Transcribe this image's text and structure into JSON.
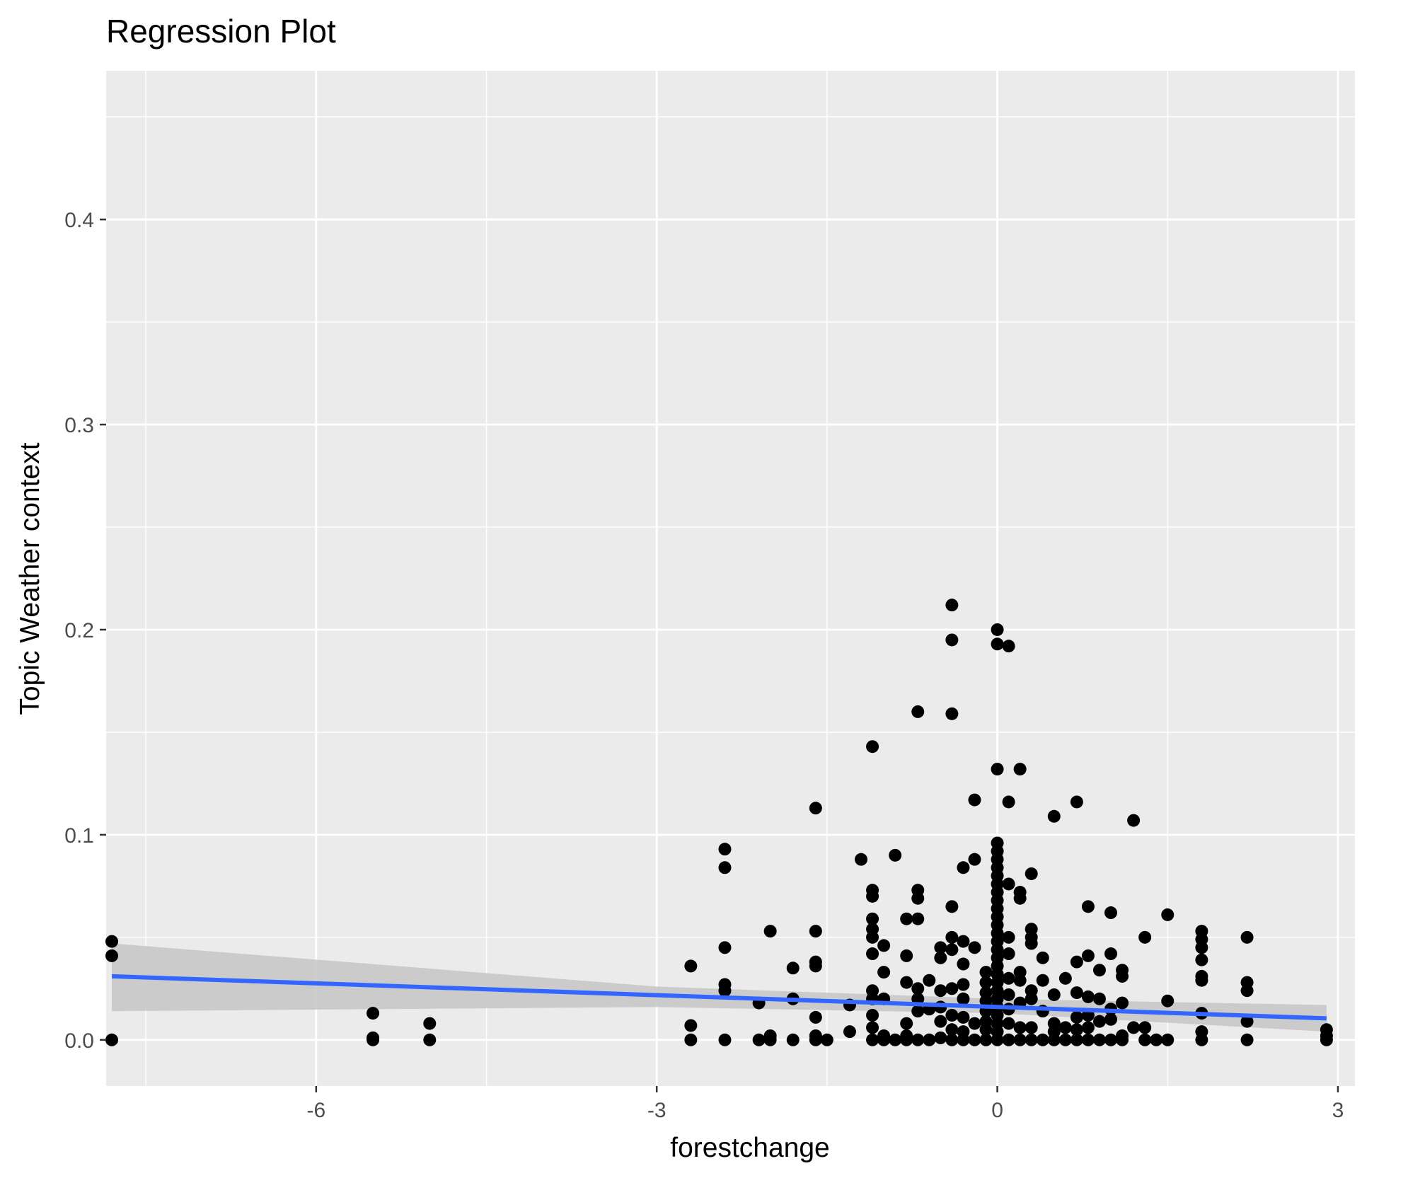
{
  "chart_data": {
    "type": "scatter",
    "title": "Regression Plot",
    "xlabel": "forestchange",
    "ylabel": "Topic Weather context",
    "xlim": [
      -7.85,
      3.15
    ],
    "ylim": [
      -0.0225,
      0.4725
    ],
    "x_ticks": [
      -6,
      -3,
      0,
      3
    ],
    "x_tick_labels": [
      "-6",
      "-3",
      "0",
      "3"
    ],
    "y_ticks": [
      0.0,
      0.1,
      0.2,
      0.3,
      0.4
    ],
    "y_tick_labels": [
      "0.0",
      "0.1",
      "0.2",
      "0.3",
      "0.4"
    ],
    "grid": true,
    "background": "#EBEBEB",
    "point_color": "#000000",
    "regression": {
      "color": "#3366FF",
      "band_color": "#C8C8C8",
      "x_start": -7.8,
      "x_end": 2.9,
      "y_start": 0.031,
      "y_end": 0.0105,
      "ci": [
        {
          "x": -7.8,
          "lo": 0.014,
          "hi": 0.047
        },
        {
          "x": -3.0,
          "lo": 0.016,
          "hi": 0.026
        },
        {
          "x": 0.0,
          "lo": 0.013,
          "hi": 0.02
        },
        {
          "x": 2.9,
          "lo": 0.004,
          "hi": 0.017
        }
      ]
    },
    "points": [
      {
        "x": -7.8,
        "y": 0.048
      },
      {
        "x": -7.8,
        "y": 0.041
      },
      {
        "x": -7.8,
        "y": 0.0
      },
      {
        "x": -5.5,
        "y": 0.013
      },
      {
        "x": -5.5,
        "y": 0.001
      },
      {
        "x": -5.5,
        "y": 0.0
      },
      {
        "x": -5.0,
        "y": 0.008
      },
      {
        "x": -5.0,
        "y": 0.0
      },
      {
        "x": -2.7,
        "y": 0.036
      },
      {
        "x": -2.7,
        "y": 0.007
      },
      {
        "x": -2.7,
        "y": 0.0
      },
      {
        "x": -2.4,
        "y": 0.093
      },
      {
        "x": -2.4,
        "y": 0.084
      },
      {
        "x": -2.4,
        "y": 0.045
      },
      {
        "x": -2.4,
        "y": 0.027
      },
      {
        "x": -2.4,
        "y": 0.024
      },
      {
        "x": -2.4,
        "y": 0.0
      },
      {
        "x": -2.1,
        "y": 0.018
      },
      {
        "x": -2.1,
        "y": 0.0
      },
      {
        "x": -2.0,
        "y": 0.053
      },
      {
        "x": -2.0,
        "y": 0.002
      },
      {
        "x": -2.0,
        "y": 0.0
      },
      {
        "x": -1.8,
        "y": 0.035
      },
      {
        "x": -1.8,
        "y": 0.02
      },
      {
        "x": -1.8,
        "y": 0.0
      },
      {
        "x": -1.6,
        "y": 0.113
      },
      {
        "x": -1.6,
        "y": 0.053
      },
      {
        "x": -1.6,
        "y": 0.038
      },
      {
        "x": -1.6,
        "y": 0.036
      },
      {
        "x": -1.6,
        "y": 0.011
      },
      {
        "x": -1.6,
        "y": 0.002
      },
      {
        "x": -1.6,
        "y": 0.0
      },
      {
        "x": -1.5,
        "y": 0.0
      },
      {
        "x": -1.3,
        "y": 0.017
      },
      {
        "x": -1.3,
        "y": 0.004
      },
      {
        "x": -1.2,
        "y": 0.088
      },
      {
        "x": -1.1,
        "y": 0.143
      },
      {
        "x": -1.1,
        "y": 0.073
      },
      {
        "x": -1.1,
        "y": 0.07
      },
      {
        "x": -1.1,
        "y": 0.059
      },
      {
        "x": -1.1,
        "y": 0.054
      },
      {
        "x": -1.1,
        "y": 0.05
      },
      {
        "x": -1.1,
        "y": 0.042
      },
      {
        "x": -1.1,
        "y": 0.024
      },
      {
        "x": -1.1,
        "y": 0.02
      },
      {
        "x": -1.1,
        "y": 0.012
      },
      {
        "x": -1.1,
        "y": 0.006
      },
      {
        "x": -1.1,
        "y": 0.0
      },
      {
        "x": -1.0,
        "y": 0.046
      },
      {
        "x": -1.0,
        "y": 0.033
      },
      {
        "x": -1.0,
        "y": 0.02
      },
      {
        "x": -1.0,
        "y": 0.002
      },
      {
        "x": -1.0,
        "y": 0.0
      },
      {
        "x": -0.9,
        "y": 0.09
      },
      {
        "x": -0.9,
        "y": 0.0
      },
      {
        "x": -0.8,
        "y": 0.059
      },
      {
        "x": -0.8,
        "y": 0.041
      },
      {
        "x": -0.8,
        "y": 0.028
      },
      {
        "x": -0.8,
        "y": 0.008
      },
      {
        "x": -0.8,
        "y": 0.002
      },
      {
        "x": -0.8,
        "y": 0.0
      },
      {
        "x": -0.7,
        "y": 0.16
      },
      {
        "x": -0.7,
        "y": 0.073
      },
      {
        "x": -0.7,
        "y": 0.069
      },
      {
        "x": -0.7,
        "y": 0.059
      },
      {
        "x": -0.7,
        "y": 0.025
      },
      {
        "x": -0.7,
        "y": 0.02
      },
      {
        "x": -0.7,
        "y": 0.014
      },
      {
        "x": -0.7,
        "y": 0.0
      },
      {
        "x": -0.6,
        "y": 0.029
      },
      {
        "x": -0.6,
        "y": 0.015
      },
      {
        "x": -0.6,
        "y": 0.0
      },
      {
        "x": -0.5,
        "y": 0.045
      },
      {
        "x": -0.5,
        "y": 0.04
      },
      {
        "x": -0.5,
        "y": 0.024
      },
      {
        "x": -0.5,
        "y": 0.016
      },
      {
        "x": -0.5,
        "y": 0.009
      },
      {
        "x": -0.5,
        "y": 0.001
      },
      {
        "x": -0.4,
        "y": 0.212
      },
      {
        "x": -0.4,
        "y": 0.195
      },
      {
        "x": -0.4,
        "y": 0.159
      },
      {
        "x": -0.4,
        "y": 0.065
      },
      {
        "x": -0.4,
        "y": 0.05
      },
      {
        "x": -0.4,
        "y": 0.044
      },
      {
        "x": -0.4,
        "y": 0.025
      },
      {
        "x": -0.4,
        "y": 0.012
      },
      {
        "x": -0.4,
        "y": 0.005
      },
      {
        "x": -0.4,
        "y": 0.0
      },
      {
        "x": -0.3,
        "y": 0.084
      },
      {
        "x": -0.3,
        "y": 0.048
      },
      {
        "x": -0.3,
        "y": 0.037
      },
      {
        "x": -0.3,
        "y": 0.027
      },
      {
        "x": -0.3,
        "y": 0.02
      },
      {
        "x": -0.3,
        "y": 0.011
      },
      {
        "x": -0.3,
        "y": 0.004
      },
      {
        "x": -0.3,
        "y": 0.0
      },
      {
        "x": -0.2,
        "y": 0.117
      },
      {
        "x": -0.2,
        "y": 0.088
      },
      {
        "x": -0.2,
        "y": 0.045
      },
      {
        "x": -0.2,
        "y": 0.008
      },
      {
        "x": -0.2,
        "y": 0.0
      },
      {
        "x": -0.1,
        "y": 0.033
      },
      {
        "x": -0.1,
        "y": 0.028
      },
      {
        "x": -0.1,
        "y": 0.023
      },
      {
        "x": -0.1,
        "y": 0.019
      },
      {
        "x": -0.1,
        "y": 0.014
      },
      {
        "x": -0.1,
        "y": 0.009
      },
      {
        "x": -0.1,
        "y": 0.005
      },
      {
        "x": -0.1,
        "y": 0.0
      },
      {
        "x": 0.0,
        "y": 0.2
      },
      {
        "x": 0.0,
        "y": 0.193
      },
      {
        "x": 0.0,
        "y": 0.132
      },
      {
        "x": 0.0,
        "y": 0.096
      },
      {
        "x": 0.0,
        "y": 0.092
      },
      {
        "x": 0.0,
        "y": 0.088
      },
      {
        "x": 0.0,
        "y": 0.084
      },
      {
        "x": 0.0,
        "y": 0.08
      },
      {
        "x": 0.0,
        "y": 0.076
      },
      {
        "x": 0.0,
        "y": 0.072
      },
      {
        "x": 0.0,
        "y": 0.068
      },
      {
        "x": 0.0,
        "y": 0.064
      },
      {
        "x": 0.0,
        "y": 0.06
      },
      {
        "x": 0.0,
        "y": 0.056
      },
      {
        "x": 0.0,
        "y": 0.052
      },
      {
        "x": 0.0,
        "y": 0.048
      },
      {
        "x": 0.0,
        "y": 0.044
      },
      {
        "x": 0.0,
        "y": 0.04
      },
      {
        "x": 0.0,
        "y": 0.036
      },
      {
        "x": 0.0,
        "y": 0.032
      },
      {
        "x": 0.0,
        "y": 0.028
      },
      {
        "x": 0.0,
        "y": 0.024
      },
      {
        "x": 0.0,
        "y": 0.02
      },
      {
        "x": 0.0,
        "y": 0.016
      },
      {
        "x": 0.0,
        "y": 0.012
      },
      {
        "x": 0.0,
        "y": 0.008
      },
      {
        "x": 0.0,
        "y": 0.004
      },
      {
        "x": 0.0,
        "y": 0.0
      },
      {
        "x": 0.1,
        "y": 0.192
      },
      {
        "x": 0.1,
        "y": 0.116
      },
      {
        "x": 0.1,
        "y": 0.076
      },
      {
        "x": 0.1,
        "y": 0.05
      },
      {
        "x": 0.1,
        "y": 0.042
      },
      {
        "x": 0.1,
        "y": 0.03
      },
      {
        "x": 0.1,
        "y": 0.022
      },
      {
        "x": 0.1,
        "y": 0.015
      },
      {
        "x": 0.1,
        "y": 0.008
      },
      {
        "x": 0.1,
        "y": 0.0
      },
      {
        "x": 0.2,
        "y": 0.132
      },
      {
        "x": 0.2,
        "y": 0.072
      },
      {
        "x": 0.2,
        "y": 0.069
      },
      {
        "x": 0.2,
        "y": 0.033
      },
      {
        "x": 0.2,
        "y": 0.029
      },
      {
        "x": 0.2,
        "y": 0.018
      },
      {
        "x": 0.2,
        "y": 0.006
      },
      {
        "x": 0.2,
        "y": 0.0
      },
      {
        "x": 0.3,
        "y": 0.081
      },
      {
        "x": 0.3,
        "y": 0.054
      },
      {
        "x": 0.3,
        "y": 0.05
      },
      {
        "x": 0.3,
        "y": 0.047
      },
      {
        "x": 0.3,
        "y": 0.024
      },
      {
        "x": 0.3,
        "y": 0.02
      },
      {
        "x": 0.3,
        "y": 0.006
      },
      {
        "x": 0.3,
        "y": 0.0
      },
      {
        "x": 0.4,
        "y": 0.04
      },
      {
        "x": 0.4,
        "y": 0.029
      },
      {
        "x": 0.4,
        "y": 0.014
      },
      {
        "x": 0.4,
        "y": 0.0
      },
      {
        "x": 0.5,
        "y": 0.109
      },
      {
        "x": 0.5,
        "y": 0.022
      },
      {
        "x": 0.5,
        "y": 0.008
      },
      {
        "x": 0.5,
        "y": 0.004
      },
      {
        "x": 0.5,
        "y": 0.0
      },
      {
        "x": 0.6,
        "y": 0.03
      },
      {
        "x": 0.6,
        "y": 0.006
      },
      {
        "x": 0.6,
        "y": 0.0
      },
      {
        "x": 0.7,
        "y": 0.116
      },
      {
        "x": 0.7,
        "y": 0.038
      },
      {
        "x": 0.7,
        "y": 0.023
      },
      {
        "x": 0.7,
        "y": 0.011
      },
      {
        "x": 0.7,
        "y": 0.005
      },
      {
        "x": 0.7,
        "y": 0.0
      },
      {
        "x": 0.8,
        "y": 0.065
      },
      {
        "x": 0.8,
        "y": 0.041
      },
      {
        "x": 0.8,
        "y": 0.021
      },
      {
        "x": 0.8,
        "y": 0.012
      },
      {
        "x": 0.8,
        "y": 0.006
      },
      {
        "x": 0.8,
        "y": 0.0
      },
      {
        "x": 0.9,
        "y": 0.034
      },
      {
        "x": 0.9,
        "y": 0.02
      },
      {
        "x": 0.9,
        "y": 0.009
      },
      {
        "x": 0.9,
        "y": 0.0
      },
      {
        "x": 1.0,
        "y": 0.062
      },
      {
        "x": 1.0,
        "y": 0.042
      },
      {
        "x": 1.0,
        "y": 0.015
      },
      {
        "x": 1.0,
        "y": 0.01
      },
      {
        "x": 1.0,
        "y": 0.0
      },
      {
        "x": 1.1,
        "y": 0.034
      },
      {
        "x": 1.1,
        "y": 0.031
      },
      {
        "x": 1.1,
        "y": 0.018
      },
      {
        "x": 1.1,
        "y": 0.002
      },
      {
        "x": 1.1,
        "y": 0.0
      },
      {
        "x": 1.2,
        "y": 0.107
      },
      {
        "x": 1.2,
        "y": 0.006
      },
      {
        "x": 1.3,
        "y": 0.05
      },
      {
        "x": 1.3,
        "y": 0.006
      },
      {
        "x": 1.3,
        "y": 0.0
      },
      {
        "x": 1.4,
        "y": 0.0
      },
      {
        "x": 1.5,
        "y": 0.061
      },
      {
        "x": 1.5,
        "y": 0.019
      },
      {
        "x": 1.5,
        "y": 0.0
      },
      {
        "x": 1.8,
        "y": 0.053
      },
      {
        "x": 1.8,
        "y": 0.049
      },
      {
        "x": 1.8,
        "y": 0.045
      },
      {
        "x": 1.8,
        "y": 0.039
      },
      {
        "x": 1.8,
        "y": 0.031
      },
      {
        "x": 1.8,
        "y": 0.029
      },
      {
        "x": 1.8,
        "y": 0.013
      },
      {
        "x": 1.8,
        "y": 0.004
      },
      {
        "x": 1.8,
        "y": 0.0
      },
      {
        "x": 2.2,
        "y": 0.05
      },
      {
        "x": 2.2,
        "y": 0.028
      },
      {
        "x": 2.2,
        "y": 0.024
      },
      {
        "x": 2.2,
        "y": 0.009
      },
      {
        "x": 2.2,
        "y": 0.0
      },
      {
        "x": 2.9,
        "y": 0.005
      },
      {
        "x": 2.9,
        "y": 0.002
      },
      {
        "x": 2.9,
        "y": 0.0
      }
    ]
  }
}
